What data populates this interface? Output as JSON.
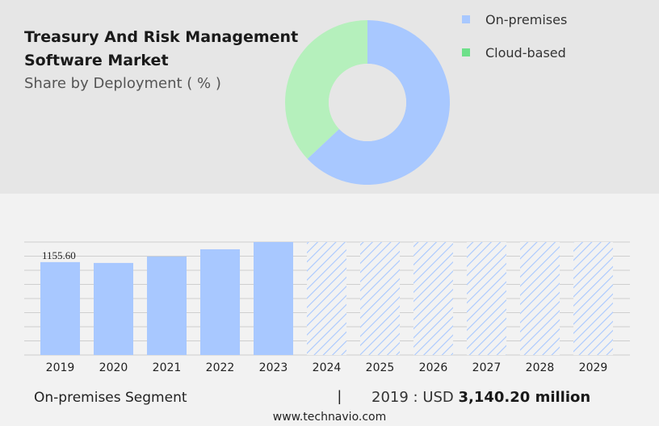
{
  "header": {
    "title": "Treasury And Risk Management Software Market",
    "subtitle": "Share by Deployment ( % )"
  },
  "colors": {
    "on_premises": "#a8c8ff",
    "cloud_based": "#b5f0bc",
    "cloud_based_legend": "#6ee08a",
    "hatch": "#a8c8ff",
    "grid": "#cfcfcf"
  },
  "chart_data": [
    {
      "type": "pie",
      "donut": true,
      "title": "Share by Deployment ( % )",
      "labels": [
        "On-premises",
        "Cloud-based"
      ],
      "values": [
        63,
        37
      ],
      "legend_position": "right"
    },
    {
      "type": "bar",
      "categories": [
        "2019",
        "2020",
        "2021",
        "2022",
        "2023",
        "2024",
        "2025",
        "2026",
        "2027",
        "2028",
        "2029"
      ],
      "values": [
        1155.6,
        1145,
        1225,
        1315,
        1405,
        1405,
        1405,
        1405,
        1405,
        1405,
        1405
      ],
      "forecast_from_index": 5,
      "data_labels": [
        "1155.60",
        "",
        "",
        "",
        "",
        "",
        "",
        "",
        "",
        "",
        ""
      ],
      "ylim": [
        0,
        1405
      ],
      "grid": true,
      "xlabel": "",
      "ylabel": ""
    }
  ],
  "footer": {
    "segment_label": "On-premises Segment",
    "divider": "|",
    "value_prefix": "2019 : USD ",
    "value_bold": "3,140.20 million",
    "source": "www.technavio.com"
  }
}
